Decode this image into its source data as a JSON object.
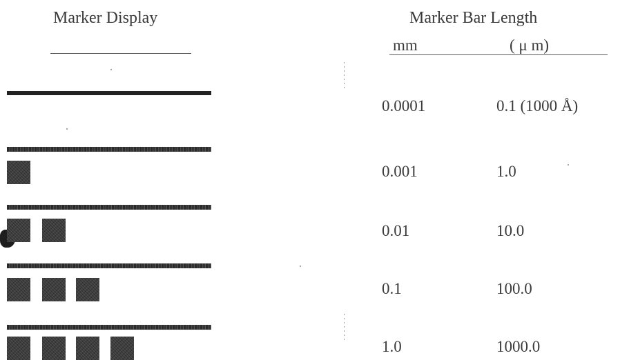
{
  "headers": {
    "display": "Marker Display",
    "length": "Marker Bar Length",
    "mm": "mm",
    "um": "( μ m)"
  },
  "rows": [
    {
      "mm": "0.0001",
      "um": "0.1 (1000 Å)",
      "squares": 0
    },
    {
      "mm": "0.001",
      "um": "1.0",
      "squares": 1
    },
    {
      "mm": "0.01",
      "um": "10.0",
      "squares": 2
    },
    {
      "mm": "0.1",
      "um": "100.0",
      "squares": 3
    },
    {
      "mm": "1.0",
      "um": "1000.0",
      "squares": 4
    }
  ]
}
